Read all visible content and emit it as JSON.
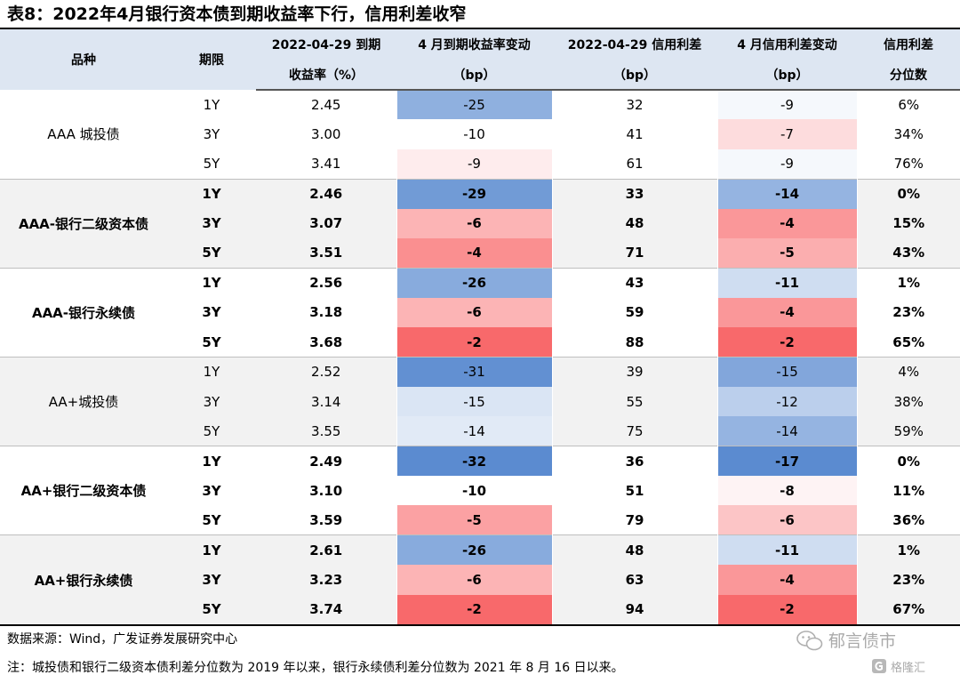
{
  "title": "表8：2022年4月银行资本债到期收益率下行，信用利差收窄",
  "headers": {
    "row1": [
      "品种",
      "期限",
      "2022-04-29 到期",
      "4 月到期收益率变动",
      "2022-04-29 信用利差",
      "4 月信用利差变动",
      "信用利差"
    ],
    "row2": [
      "收益率（%）",
      "（bp）",
      "（bp）",
      "（bp）",
      "分位数"
    ]
  },
  "chart_data": {
    "type": "table",
    "columns": [
      "品种",
      "期限",
      "2022-04-29 到期收益率（%）",
      "4 月到期收益率变动（bp）",
      "2022-04-29 信用利差（bp）",
      "4 月信用利差变动（bp）",
      "信用利差分位数"
    ],
    "groups": [
      {
        "name": "AAA 城投债",
        "bold": false,
        "rows": [
          {
            "term": "1Y",
            "ytm": "2.45",
            "ytm_chg": -25,
            "spread": "32",
            "spread_chg": -9,
            "pct": "6%"
          },
          {
            "term": "3Y",
            "ytm": "3.00",
            "ytm_chg": -10,
            "spread": "41",
            "spread_chg": -7,
            "pct": "34%"
          },
          {
            "term": "5Y",
            "ytm": "3.41",
            "ytm_chg": -9,
            "spread": "61",
            "spread_chg": -9,
            "pct": "76%"
          }
        ]
      },
      {
        "name": "AAA-银行二级资本债",
        "bold": true,
        "rows": [
          {
            "term": "1Y",
            "ytm": "2.46",
            "ytm_chg": -29,
            "spread": "33",
            "spread_chg": -14,
            "pct": "0%"
          },
          {
            "term": "3Y",
            "ytm": "3.07",
            "ytm_chg": -6,
            "spread": "48",
            "spread_chg": -4,
            "pct": "15%"
          },
          {
            "term": "5Y",
            "ytm": "3.51",
            "ytm_chg": -4,
            "spread": "71",
            "spread_chg": -5,
            "pct": "43%"
          }
        ]
      },
      {
        "name": "AAA-银行永续债",
        "bold": true,
        "rows": [
          {
            "term": "1Y",
            "ytm": "2.56",
            "ytm_chg": -26,
            "spread": "43",
            "spread_chg": -11,
            "pct": "1%"
          },
          {
            "term": "3Y",
            "ytm": "3.18",
            "ytm_chg": -6,
            "spread": "59",
            "spread_chg": -4,
            "pct": "23%"
          },
          {
            "term": "5Y",
            "ytm": "3.68",
            "ytm_chg": -2,
            "spread": "88",
            "spread_chg": -2,
            "pct": "65%"
          }
        ]
      },
      {
        "name": "AA+城投债",
        "bold": false,
        "rows": [
          {
            "term": "1Y",
            "ytm": "2.52",
            "ytm_chg": -31,
            "spread": "39",
            "spread_chg": -15,
            "pct": "4%"
          },
          {
            "term": "3Y",
            "ytm": "3.14",
            "ytm_chg": -15,
            "spread": "55",
            "spread_chg": -12,
            "pct": "38%"
          },
          {
            "term": "5Y",
            "ytm": "3.55",
            "ytm_chg": -14,
            "spread": "75",
            "spread_chg": -14,
            "pct": "59%"
          }
        ]
      },
      {
        "name": "AA+银行二级资本债",
        "bold": true,
        "rows": [
          {
            "term": "1Y",
            "ytm": "2.49",
            "ytm_chg": -32,
            "spread": "36",
            "spread_chg": -17,
            "pct": "0%"
          },
          {
            "term": "3Y",
            "ytm": "3.10",
            "ytm_chg": -10,
            "spread": "51",
            "spread_chg": -8,
            "pct": "11%"
          },
          {
            "term": "5Y",
            "ytm": "3.59",
            "ytm_chg": -5,
            "spread": "79",
            "spread_chg": -6,
            "pct": "36%"
          }
        ]
      },
      {
        "name": "AA+银行永续债",
        "bold": true,
        "rows": [
          {
            "term": "1Y",
            "ytm": "2.61",
            "ytm_chg": -26,
            "spread": "48",
            "spread_chg": -11,
            "pct": "1%"
          },
          {
            "term": "3Y",
            "ytm": "3.23",
            "ytm_chg": -6,
            "spread": "63",
            "spread_chg": -4,
            "pct": "23%"
          },
          {
            "term": "5Y",
            "ytm": "3.74",
            "ytm_chg": -2,
            "spread": "94",
            "spread_chg": -2,
            "pct": "67%"
          }
        ]
      }
    ]
  },
  "heatmap_colors": {
    "low": "#5b8bd0",
    "mid": "#ffffff",
    "high": "#f8696b"
  },
  "footnotes": {
    "source": "数据来源：Wind，广发证券发展研究中心",
    "note": "注：城投债和银行二级资本债利差分位数为 2019 年以来，银行永续债利差分位数为 2021 年 8 月 16 日以来。"
  },
  "watermark": {
    "text1": "郁言债市",
    "text2": "格隆汇"
  }
}
